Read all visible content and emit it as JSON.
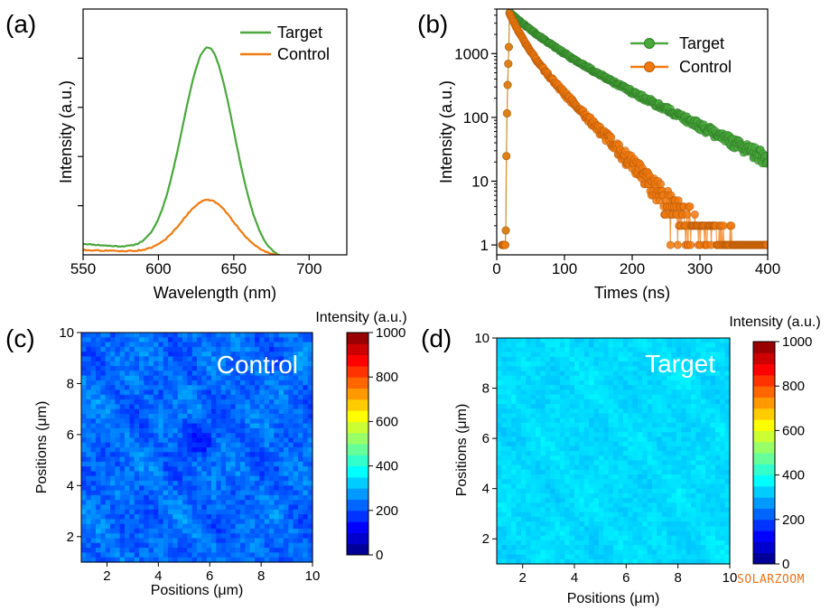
{
  "watermark": "SOLARZOOM",
  "chart_data": [
    {
      "panel": "a",
      "panel_label": "(a)",
      "type": "line",
      "xlabel": "Wavelength (nm)",
      "ylabel": "Intensity (a.u.)",
      "xlim": [
        550,
        725
      ],
      "ylim": [
        0,
        1.0
      ],
      "xticks": [
        550,
        600,
        650,
        700
      ],
      "yticks": [
        0.2,
        0.4,
        0.6,
        0.8
      ],
      "show_ytick_labels": false,
      "legend_position": "top-right",
      "series": [
        {
          "name": "Target",
          "color": "#4aa83c",
          "peak": 633,
          "width": 17,
          "amplitude": 0.84,
          "baseline": 0.045,
          "baseline_slope": -0.0005
        },
        {
          "name": "Control",
          "color": "#f07a10",
          "peak": 633,
          "width": 17,
          "amplitude": 0.22,
          "baseline": 0.02,
          "baseline_slope": -0.0002
        }
      ]
    },
    {
      "panel": "b",
      "panel_label": "(b)",
      "type": "scatter",
      "yscale": "log",
      "xlabel": "Times (ns)",
      "ylabel": "Intensity (a.u.)",
      "xlim": [
        0,
        400
      ],
      "ylim": [
        0.7,
        5000
      ],
      "xticks": [
        0,
        100,
        200,
        300,
        400
      ],
      "yticks": [
        1,
        10,
        100,
        1000
      ],
      "legend_position": "top-right",
      "series": [
        {
          "name": "Target",
          "color": "#4aa83c",
          "t0": 18,
          "peak_counts": 4500,
          "tau_fast": 35,
          "tau_slow": 85,
          "fast_fraction": 0.55,
          "floor": 1
        },
        {
          "name": "Control",
          "color": "#f07a10",
          "t0": 18,
          "peak_counts": 4500,
          "tau_fast": 14,
          "tau_slow": 40,
          "fast_fraction": 0.6,
          "floor": 1
        }
      ]
    },
    {
      "panel": "c",
      "panel_label": "(c)",
      "type": "heatmap",
      "title": "Control",
      "xlabel": "Positions (μm)",
      "ylabel": "Positions (μm)",
      "xlim": [
        1,
        10
      ],
      "ylim": [
        1,
        10
      ],
      "xticks": [
        2,
        4,
        6,
        8,
        10
      ],
      "yticks": [
        2,
        4,
        6,
        8,
        10
      ],
      "mean_intensity": 230,
      "colorbar": {
        "label": "Intensity (a.u.)",
        "range": [
          0,
          1000
        ],
        "ticks": [
          0,
          200,
          400,
          600,
          800,
          1000
        ]
      }
    },
    {
      "panel": "d",
      "panel_label": "(d)",
      "type": "heatmap",
      "title": "Target",
      "xlabel": "Positions (μm)",
      "ylabel": "Positions (μm)",
      "xlim": [
        1,
        10
      ],
      "ylim": [
        1,
        10
      ],
      "xticks": [
        2,
        4,
        6,
        8,
        10
      ],
      "yticks": [
        2,
        4,
        6,
        8,
        10
      ],
      "mean_intensity": 340,
      "colorbar": {
        "label": "Intensity (a.u.)",
        "range": [
          0,
          1000
        ],
        "ticks": [
          0,
          200,
          400,
          600,
          800,
          1000
        ]
      }
    }
  ]
}
